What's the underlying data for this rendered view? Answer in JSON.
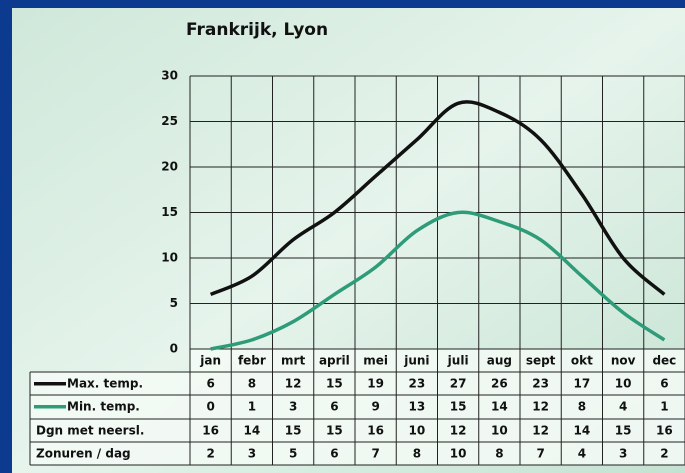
{
  "chart_data": {
    "type": "line",
    "title": "Frankrijk, Lyon",
    "categories": [
      "jan",
      "febr",
      "mrt",
      "april",
      "mei",
      "juni",
      "juli",
      "aug",
      "sept",
      "okt",
      "nov",
      "dec"
    ],
    "series": [
      {
        "name": "Max. temp.",
        "color": "#111111",
        "values": [
          6,
          8,
          12,
          15,
          19,
          23,
          27,
          26,
          23,
          17,
          10,
          6
        ]
      },
      {
        "name": "Min. temp.",
        "color": "#2e9c78",
        "values": [
          0,
          1,
          3,
          6,
          9,
          13,
          15,
          14,
          12,
          8,
          4,
          1
        ]
      }
    ],
    "table_rows": [
      {
        "name": "Dgn met neersl.",
        "values": [
          16,
          14,
          15,
          15,
          16,
          10,
          12,
          10,
          12,
          14,
          15,
          16
        ]
      },
      {
        "name": "Zonuren / dag",
        "values": [
          2,
          3,
          5,
          6,
          7,
          8,
          10,
          8,
          7,
          4,
          3,
          2
        ]
      }
    ],
    "ylim": [
      0,
      30
    ],
    "yticks": [
      0,
      5,
      10,
      15,
      20,
      25,
      30
    ],
    "grid": true
  }
}
